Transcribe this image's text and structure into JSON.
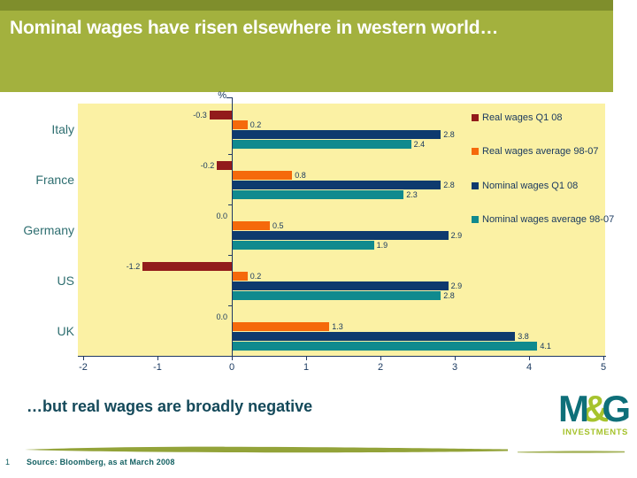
{
  "slide": {
    "title": "Nominal wages have risen elsewhere in western world…",
    "subtitle": "…but real wages are broadly negative",
    "page_number": "1",
    "source": "Source: Bloomberg, as at March 2008",
    "logo": {
      "m": "M",
      "amp": "&",
      "g": "G",
      "tagline": "INVESTMENTS"
    }
  },
  "chart_data": {
    "type": "bar",
    "orientation": "horizontal",
    "unit_label": "%",
    "categories": [
      "Italy",
      "France",
      "Germany",
      "US",
      "UK"
    ],
    "series": [
      {
        "name": "Real wages Q1 08",
        "color": "#921B1B",
        "values": [
          -0.3,
          -0.2,
          0.0,
          -1.2,
          0.0
        ]
      },
      {
        "name": "Real wages average 98-07",
        "color": "#F5690B",
        "values": [
          0.2,
          0.8,
          0.5,
          0.2,
          1.3
        ]
      },
      {
        "name": "Nominal wages Q1 08",
        "color": "#0E3A6E",
        "values": [
          2.8,
          2.8,
          2.9,
          2.9,
          3.8
        ]
      },
      {
        "name": "Nominal wages average 98-07",
        "color": "#108A8E",
        "values": [
          2.4,
          2.3,
          1.9,
          2.8,
          4.1
        ]
      }
    ],
    "xlim": [
      -2,
      5
    ],
    "x_ticks": [
      -2,
      -1,
      0,
      1,
      2,
      3,
      4,
      5
    ],
    "grid": false,
    "legend_position": "right-inside",
    "value_labels": true
  },
  "colors": {
    "header_green": "#A3B13E",
    "header_green_dark": "#7F8E2C",
    "plot_bg": "#FBF1A4",
    "axis_line": "#1F3864",
    "axis_text": "#17375E",
    "category_color": "#2E6E70",
    "subtitle_color": "#14495A",
    "logo_teal": "#0E6F79",
    "logo_lime": "#A6C32D",
    "brush_olive": "#93A339",
    "source_color": "#136062"
  }
}
